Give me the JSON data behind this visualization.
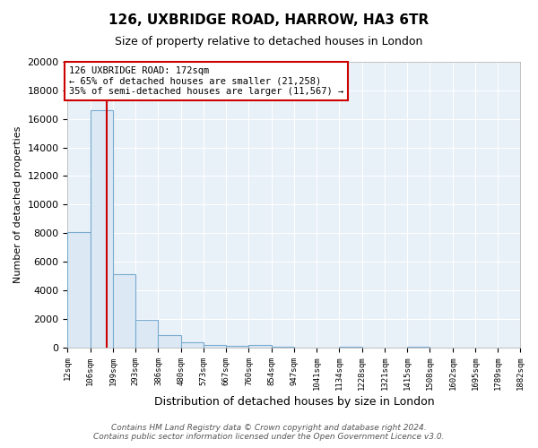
{
  "title1": "126, UXBRIDGE ROAD, HARROW, HA3 6TR",
  "title2": "Size of property relative to detached houses in London",
  "xlabel": "Distribution of detached houses by size in London",
  "ylabel": "Number of detached properties",
  "bin_edges": [
    12,
    106,
    199,
    293,
    386,
    480,
    573,
    667,
    760,
    854,
    947,
    1041,
    1134,
    1228,
    1321,
    1415,
    1508,
    1602,
    1695,
    1789,
    1882
  ],
  "bin_labels": [
    "12sqm",
    "106sqm",
    "199sqm",
    "293sqm",
    "386sqm",
    "480sqm",
    "573sqm",
    "667sqm",
    "760sqm",
    "854sqm",
    "947sqm",
    "1041sqm",
    "1134sqm",
    "1228sqm",
    "1321sqm",
    "1415sqm",
    "1508sqm",
    "1602sqm",
    "1695sqm",
    "1789sqm",
    "1882sqm"
  ],
  "bar_heights": [
    8100,
    16600,
    5100,
    1900,
    850,
    350,
    190,
    130,
    150,
    50,
    0,
    0,
    50,
    0,
    0,
    50,
    0,
    0,
    0,
    0
  ],
  "bar_color": "#dce9f5",
  "bar_edge_color": "#7aabcf",
  "property_size": 172,
  "red_line_color": "#cc0000",
  "annotation_text": "126 UXBRIDGE ROAD: 172sqm\n← 65% of detached houses are smaller (21,258)\n35% of semi-detached houses are larger (11,567) →",
  "annotation_box_facecolor": "#ffffff",
  "annotation_box_edgecolor": "#cc0000",
  "ylim": [
    0,
    20000
  ],
  "yticks": [
    0,
    2000,
    4000,
    6000,
    8000,
    10000,
    12000,
    14000,
    16000,
    18000,
    20000
  ],
  "footer1": "Contains HM Land Registry data © Crown copyright and database right 2024.",
  "footer2": "Contains public sector information licensed under the Open Government Licence v3.0.",
  "fig_bg_color": "#ffffff",
  "plot_bg_color": "#e8f0f8",
  "grid_color": "#ffffff",
  "title1_fontsize": 11,
  "title2_fontsize": 9,
  "xlabel_fontsize": 9,
  "ylabel_fontsize": 8,
  "xtick_fontsize": 6.5,
  "ytick_fontsize": 8,
  "footer_fontsize": 6.5,
  "ann_fontsize": 7.5
}
